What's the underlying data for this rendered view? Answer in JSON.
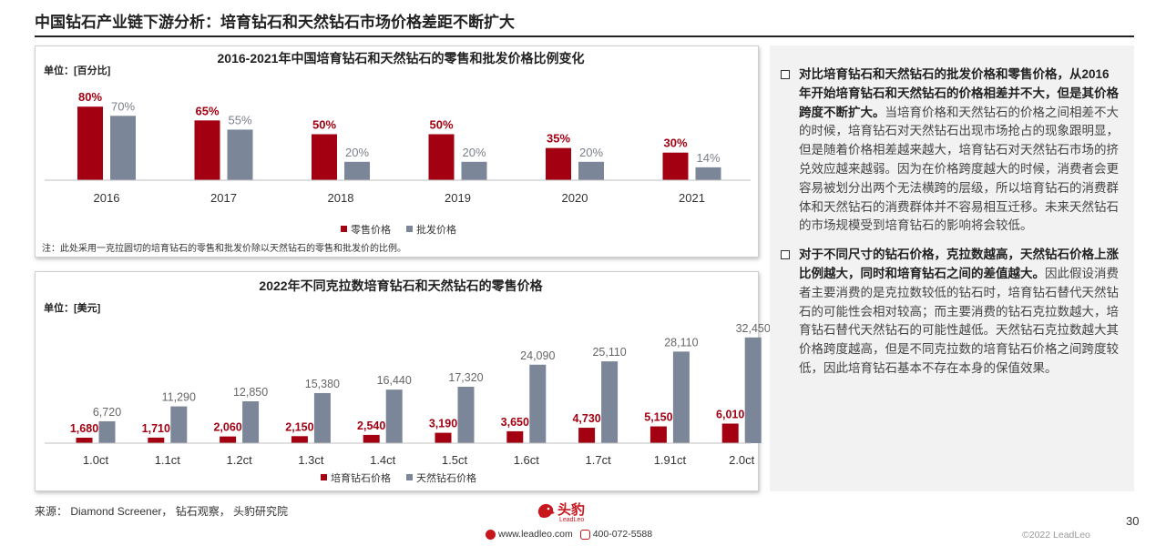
{
  "page": {
    "title": "中国钻石产业链下游分析：培育钻石和天然钻石市场价格差距不断扩大",
    "page_number": "30",
    "source": "来源：  Diamond Screener，  钻石观察，  头豹研究院",
    "website": "www.leadleo.com",
    "phone": "400-072-5588",
    "copyright": "©2022 LeadLeo",
    "logo_text": "头豹",
    "logo_sub": "LeadLeo"
  },
  "colors": {
    "red": "#a30012",
    "gray": "#7b8698",
    "accent": "#c8161d"
  },
  "chart_data": [
    {
      "type": "bar",
      "title": "2016-2021年中国培育钻石和天然钻石的零售和批发价格比例变化",
      "unit": "单位：[百分比]",
      "categories": [
        "2016",
        "2017",
        "2018",
        "2019",
        "2020",
        "2021"
      ],
      "series": [
        {
          "name": "零售价格",
          "values": [
            80,
            65,
            50,
            50,
            35,
            30
          ],
          "labels": [
            "80%",
            "65%",
            "50%",
            "50%",
            "35%",
            "30%"
          ]
        },
        {
          "name": "批发价格",
          "values": [
            70,
            55,
            20,
            20,
            20,
            14
          ],
          "labels": [
            "70%",
            "55%",
            "20%",
            "20%",
            "20%",
            "14%"
          ]
        }
      ],
      "legend": "bottom-center",
      "note": "注：此处采用一克拉圆切的培育钻石的零售和批发价除以天然钻石的零售和批发价的比例。"
    },
    {
      "type": "bar",
      "title": "2022年不同克拉数培育钻石和天然钻石的零售价格",
      "unit": "单位：[美元]",
      "categories": [
        "1.0ct",
        "1.1ct",
        "1.2ct",
        "1.3ct",
        "1.4ct",
        "1.5ct",
        "1.6ct",
        "1.7ct",
        "1.91ct",
        "2.0ct"
      ],
      "series": [
        {
          "name": "培育钻石价格",
          "values": [
            1680,
            1710,
            2060,
            2150,
            2540,
            3190,
            3650,
            4730,
            5150,
            6010
          ],
          "labels": [
            "1,680",
            "1,710",
            "2,060",
            "2,150",
            "2,540",
            "3,190",
            "3,650",
            "4,730",
            "5,150",
            "6,010"
          ]
        },
        {
          "name": "天然钻石价格",
          "values": [
            6720,
            11290,
            12850,
            15380,
            16440,
            17320,
            24090,
            25110,
            28110,
            32450
          ],
          "labels": [
            "6,720",
            "11,290",
            "12,850",
            "15,380",
            "16,440",
            "17,320",
            "24,090",
            "25,110",
            "28,110",
            "32,450"
          ]
        }
      ],
      "legend": "bottom-center"
    }
  ],
  "analysis": [
    {
      "bold": "对比培育钻石和天然钻石的批发价格和零售价格，从2016年开始培育钻石和天然钻石的价格相差并不大，但是其价格跨度不断扩大。",
      "text": "当培育价格和天然钻石的价格之间相差不大的时候，培育钻石对天然钻石出现市场抢占的现象跟明显，但是随着价格相差越来越大，培育钻石对天然钻石市场的挤兑效应越来越弱。因为在价格跨度越大的时候，消费者会更容易被划分出两个无法横跨的层级，所以培育钻石的消费群体和天然钻石的消费群体并不容易相互迁移。未来天然钻石的市场规模受到培育钻石的影响将会较低。"
    },
    {
      "bold": "对于不同尺寸的钻石价格，克拉数越高，天然钻石价格上涨比例越大，同时和培育钻石之间的差值越大。",
      "text": "因此假设消费者主要消费的是克拉数较低的钻石时，培育钻石替代天然钻石的可能性会相对较高；而主要消费的钻石克拉数越大，培育钻石替代天然钻石的可能性越低。天然钻石克拉数越大其价格跨度越高，但是不同克拉数的培育钻石价格之间跨度较低，因此培育钻石基本不存在本身的保值效果。"
    }
  ]
}
